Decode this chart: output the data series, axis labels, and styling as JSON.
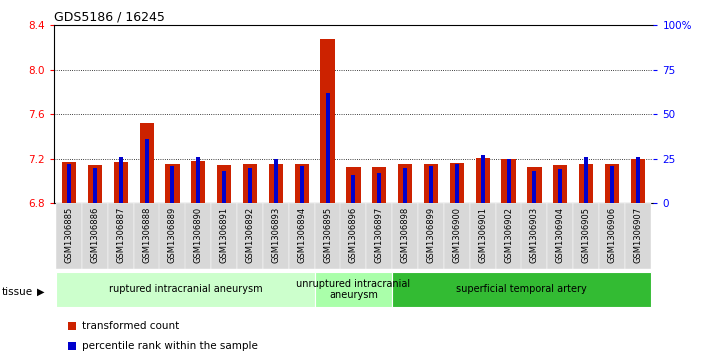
{
  "title": "GDS5186 / 16245",
  "samples": [
    "GSM1306885",
    "GSM1306886",
    "GSM1306887",
    "GSM1306888",
    "GSM1306889",
    "GSM1306890",
    "GSM1306891",
    "GSM1306892",
    "GSM1306893",
    "GSM1306894",
    "GSM1306895",
    "GSM1306896",
    "GSM1306897",
    "GSM1306898",
    "GSM1306899",
    "GSM1306900",
    "GSM1306901",
    "GSM1306902",
    "GSM1306903",
    "GSM1306904",
    "GSM1306905",
    "GSM1306906",
    "GSM1306907"
  ],
  "transformed_count": [
    7.17,
    7.14,
    7.17,
    7.52,
    7.15,
    7.18,
    7.14,
    7.15,
    7.15,
    7.15,
    8.28,
    7.13,
    7.13,
    7.15,
    7.15,
    7.16,
    7.21,
    7.2,
    7.13,
    7.14,
    7.15,
    7.15,
    7.2
  ],
  "percentile_rank": [
    22,
    20,
    26,
    36,
    21,
    26,
    18,
    20,
    25,
    21,
    62,
    16,
    17,
    20,
    21,
    22,
    27,
    25,
    18,
    19,
    26,
    21,
    26
  ],
  "ylim_left": [
    6.8,
    8.4
  ],
  "ylim_right": [
    0,
    100
  ],
  "yticks_left": [
    6.8,
    7.2,
    7.6,
    8.0,
    8.4
  ],
  "yticks_right": [
    0,
    25,
    50,
    75,
    100
  ],
  "ytick_labels_right": [
    "0",
    "25",
    "50",
    "75",
    "100%"
  ],
  "bar_color": "#cc2200",
  "percentile_color": "#0000cc",
  "bg_color": "#ffffff",
  "tissue_groups": [
    {
      "label": "ruptured intracranial aneurysm",
      "start": 0,
      "end": 10,
      "color": "#ccffcc"
    },
    {
      "label": "unruptured intracranial\naneurysm",
      "start": 10,
      "end": 13,
      "color": "#aaffaa"
    },
    {
      "label": "superficial temporal artery",
      "start": 13,
      "end": 23,
      "color": "#33bb33"
    }
  ],
  "legend_labels": [
    "transformed count",
    "percentile rank within the sample"
  ],
  "legend_colors": [
    "#cc2200",
    "#0000cc"
  ]
}
